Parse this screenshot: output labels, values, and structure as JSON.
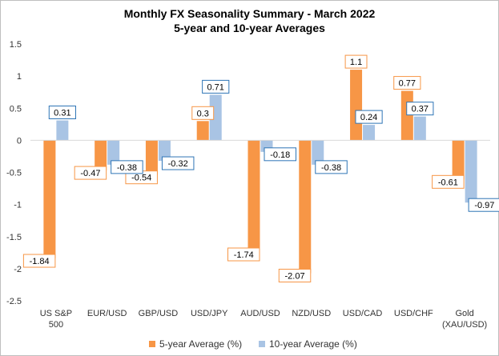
{
  "chart_data": {
    "type": "bar",
    "title": "Monthly FX Seasonality Summary - March 2022",
    "subtitle": "5-year and 10-year Averages",
    "categories": [
      "US S&P 500",
      "EUR/USD",
      "GBP/USD",
      "USD/JPY",
      "AUD/USD",
      "NZD/USD",
      "USD/CAD",
      "USD/CHF",
      "Gold (XAU/USD)"
    ],
    "category_lines": [
      [
        "US S&P",
        "500"
      ],
      [
        "EUR/USD"
      ],
      [
        "GBP/USD"
      ],
      [
        "USD/JPY"
      ],
      [
        "AUD/USD"
      ],
      [
        "NZD/USD"
      ],
      [
        "USD/CAD"
      ],
      [
        "USD/CHF"
      ],
      [
        "Gold",
        "(XAU/USD)"
      ]
    ],
    "series": [
      {
        "name": "5-year Average (%)",
        "color": "#F79646",
        "values": [
          -1.84,
          -0.47,
          -0.54,
          0.3,
          -1.74,
          -2.07,
          1.1,
          0.77,
          -0.61
        ]
      },
      {
        "name": "10-year Average (%)",
        "color": "#A9C4E4",
        "values": [
          0.31,
          -0.38,
          -0.32,
          0.71,
          -0.18,
          -0.38,
          0.24,
          0.37,
          -0.97
        ]
      }
    ],
    "data_labels": [
      [
        "-1.84",
        "-0.47",
        "-0.54",
        "0.3",
        "-1.74",
        "-2.07",
        "1.1",
        "0.77",
        "-0.61"
      ],
      [
        "0.31",
        "-0.38",
        "-0.32",
        "0.71",
        "-0.18",
        "-0.38",
        "0.24",
        "0.37",
        "-0.97"
      ]
    ],
    "label_border_colors": [
      "#F79646",
      "#2E75B6"
    ],
    "ylim": [
      -2.5,
      1.5
    ],
    "yticks": [
      1.5,
      1,
      0.5,
      0,
      -0.5,
      -1,
      -1.5,
      -2,
      -2.5
    ],
    "ytick_labels": [
      "1.5",
      "1",
      "0.5",
      "0",
      "-0.5",
      "-1",
      "-1.5",
      "-2",
      "-2.5"
    ],
    "xlabel": "",
    "ylabel": "",
    "grid": false,
    "legend_position": "bottom"
  }
}
